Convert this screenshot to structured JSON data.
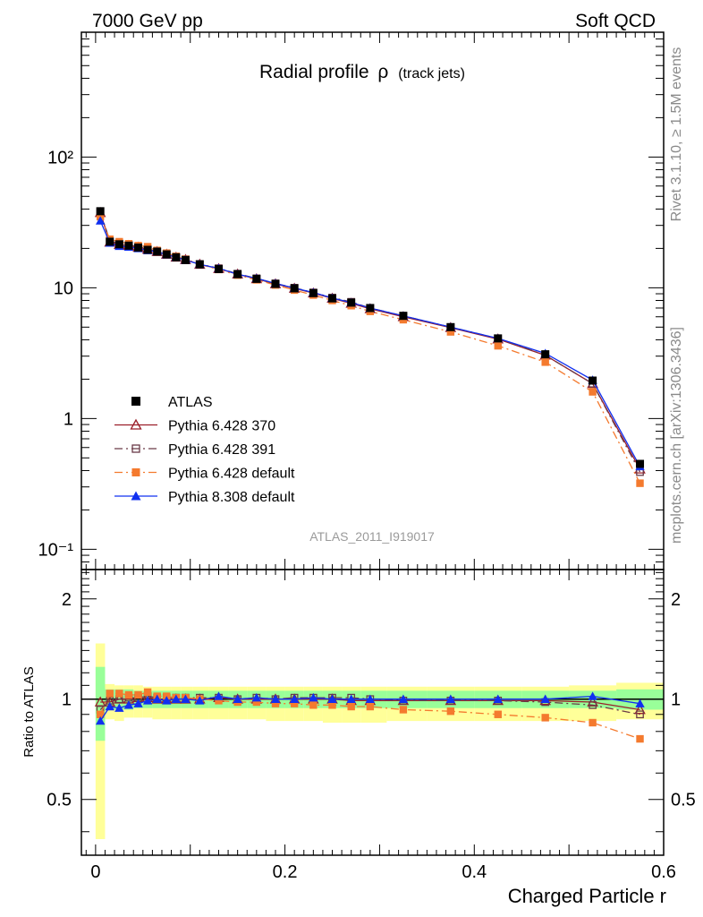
{
  "header": {
    "left": "7000 GeV pp",
    "right": "Soft QCD"
  },
  "side": {
    "rivet": "Rivet 3.1.10, ≥ 1.5M events",
    "mcplots": "mcplots.cern.ch [arXiv:1306.3436]"
  },
  "chart_data": {
    "type": "line",
    "title": "Radial profile",
    "title_symbol": "ρ",
    "title_suffix": "(track jets)",
    "watermark": "ATLAS_2011_I919017",
    "xlabel": "Charged Particle r",
    "ylabel_ratio": "Ratio to ATLAS",
    "xlim": [
      -0.015,
      0.6
    ],
    "ylim": [
      0.07,
      900
    ],
    "yscale": "log",
    "ratio_ylim": [
      0.34,
      2.45
    ],
    "x_ticks": [
      "0",
      "0.2",
      "0.4",
      "0.6"
    ],
    "y_ticks": [
      "10⁻¹",
      "1",
      "10",
      "10²"
    ],
    "ratio_y_ticks": [
      "0.5",
      "1",
      "2"
    ],
    "legend_position": "bottom-left",
    "x": [
      0.005,
      0.015,
      0.025,
      0.035,
      0.045,
      0.055,
      0.065,
      0.075,
      0.085,
      0.095,
      0.11,
      0.13,
      0.15,
      0.17,
      0.19,
      0.21,
      0.23,
      0.25,
      0.27,
      0.29,
      0.325,
      0.375,
      0.425,
      0.475,
      0.525,
      0.575
    ],
    "series": [
      {
        "name": "ATLAS",
        "color": "#000000",
        "marker": "square-filled",
        "line": "none",
        "values": [
          38.5,
          22.5,
          21.5,
          21.0,
          20.3,
          19.5,
          18.9,
          18.0,
          17.1,
          16.3,
          15.1,
          13.9,
          12.7,
          11.7,
          10.7,
          9.9,
          9.1,
          8.3,
          7.7,
          7.0,
          6.1,
          5.0,
          4.1,
          3.1,
          1.95,
          0.45
        ],
        "ratio_values": [],
        "band_inner": [
          [
            0.75,
            1.25
          ],
          [
            0.93,
            1.07
          ],
          [
            0.93,
            1.07
          ],
          [
            0.93,
            1.07
          ],
          [
            0.94,
            1.06
          ],
          [
            0.94,
            1.06
          ],
          [
            0.94,
            1.06
          ],
          [
            0.94,
            1.06
          ],
          [
            0.94,
            1.06
          ],
          [
            0.94,
            1.06
          ],
          [
            0.94,
            1.06
          ],
          [
            0.94,
            1.06
          ],
          [
            0.94,
            1.06
          ],
          [
            0.94,
            1.06
          ],
          [
            0.94,
            1.06
          ],
          [
            0.94,
            1.06
          ],
          [
            0.94,
            1.06
          ],
          [
            0.94,
            1.06
          ],
          [
            0.94,
            1.06
          ],
          [
            0.94,
            1.06
          ],
          [
            0.94,
            1.06
          ],
          [
            0.94,
            1.06
          ],
          [
            0.94,
            1.06
          ],
          [
            0.94,
            1.06
          ],
          [
            0.94,
            1.06
          ],
          [
            0.93,
            1.07
          ]
        ],
        "band_outer": [
          [
            0.38,
            1.47
          ],
          [
            0.87,
            1.11
          ],
          [
            0.86,
            1.1
          ],
          [
            0.88,
            1.1
          ],
          [
            0.88,
            1.1
          ],
          [
            0.88,
            1.09
          ],
          [
            0.87,
            1.09
          ],
          [
            0.87,
            1.09
          ],
          [
            0.87,
            1.09
          ],
          [
            0.87,
            1.09
          ],
          [
            0.87,
            1.09
          ],
          [
            0.87,
            1.09
          ],
          [
            0.87,
            1.09
          ],
          [
            0.87,
            1.09
          ],
          [
            0.86,
            1.09
          ],
          [
            0.86,
            1.09
          ],
          [
            0.86,
            1.09
          ],
          [
            0.85,
            1.09
          ],
          [
            0.85,
            1.09
          ],
          [
            0.85,
            1.09
          ],
          [
            0.86,
            1.09
          ],
          [
            0.86,
            1.09
          ],
          [
            0.86,
            1.09
          ],
          [
            0.86,
            1.09
          ],
          [
            0.86,
            1.1
          ],
          [
            0.87,
            1.12
          ]
        ]
      },
      {
        "name": "Pythia 6.428 370",
        "color": "#9b1f2a",
        "marker": "triangle-open",
        "line": "solid",
        "values": [
          37.5,
          22.3,
          21.4,
          21.0,
          20.4,
          19.7,
          18.9,
          18.0,
          17.1,
          16.4,
          15.1,
          14.0,
          12.7,
          11.7,
          10.7,
          9.9,
          9.1,
          8.3,
          7.6,
          6.9,
          6.0,
          4.95,
          4.05,
          3.05,
          1.85,
          0.41
        ],
        "ratio_values": [
          0.98,
          0.98,
          1.0,
          1.0,
          1.01,
          1.01,
          1.0,
          1.0,
          1.0,
          1.0,
          1.0,
          1.01,
          1.0,
          1.0,
          1.0,
          1.0,
          1.0,
          1.0,
          0.99,
          0.99,
          0.99,
          0.99,
          0.99,
          0.99,
          0.98,
          0.93
        ]
      },
      {
        "name": "Pythia 6.428 391",
        "color": "#6a3a47",
        "marker": "square-open",
        "line": "dash-dot",
        "values": [
          38.0,
          22.8,
          21.8,
          21.3,
          20.6,
          19.8,
          19.0,
          18.1,
          17.2,
          16.5,
          15.2,
          14.1,
          12.8,
          11.8,
          10.8,
          10.0,
          9.2,
          8.4,
          7.8,
          7.0,
          6.1,
          5.0,
          4.1,
          3.05,
          1.85,
          0.39
        ],
        "ratio_values": [
          0.93,
          0.99,
          1.0,
          1.01,
          1.01,
          1.02,
          1.01,
          1.01,
          1.01,
          1.01,
          1.01,
          1.01,
          1.0,
          1.01,
          1.0,
          1.01,
          1.01,
          1.01,
          1.01,
          1.0,
          0.99,
          0.99,
          0.99,
          0.98,
          0.96,
          0.9
        ]
      },
      {
        "name": "Pythia 6.428 default",
        "color": "#f47a2e",
        "marker": "square-filled",
        "line": "dash-dot",
        "values": [
          35.0,
          23.5,
          22.5,
          21.7,
          21.0,
          20.6,
          19.3,
          18.4,
          17.4,
          16.5,
          15.1,
          13.8,
          12.5,
          11.5,
          10.5,
          9.6,
          8.8,
          8.0,
          7.3,
          6.6,
          5.7,
          4.6,
          3.6,
          2.7,
          1.6,
          0.32
        ],
        "ratio_values": [
          0.9,
          1.04,
          1.04,
          1.03,
          1.03,
          1.05,
          1.02,
          1.02,
          1.01,
          1.01,
          1.0,
          0.99,
          0.98,
          0.98,
          0.97,
          0.97,
          0.96,
          0.96,
          0.95,
          0.95,
          0.93,
          0.92,
          0.9,
          0.88,
          0.85,
          0.76
        ]
      },
      {
        "name": "Pythia 8.308 default",
        "color": "#1030f0",
        "marker": "triangle-filled",
        "line": "solid",
        "values": [
          32.5,
          22.0,
          20.8,
          20.5,
          20.0,
          19.3,
          18.9,
          17.9,
          17.1,
          16.3,
          15.1,
          14.1,
          12.7,
          11.8,
          10.8,
          9.95,
          9.2,
          8.35,
          7.7,
          7.0,
          6.1,
          5.0,
          4.1,
          3.15,
          1.97,
          0.43
        ],
        "ratio_values": [
          0.86,
          0.95,
          0.94,
          0.96,
          0.97,
          0.99,
          1.0,
          0.99,
          1.0,
          1.0,
          0.99,
          1.02,
          1.0,
          1.01,
          1.0,
          1.0,
          1.01,
          1.0,
          1.0,
          1.0,
          1.0,
          1.0,
          1.0,
          1.0,
          1.02,
          0.97
        ]
      }
    ]
  }
}
